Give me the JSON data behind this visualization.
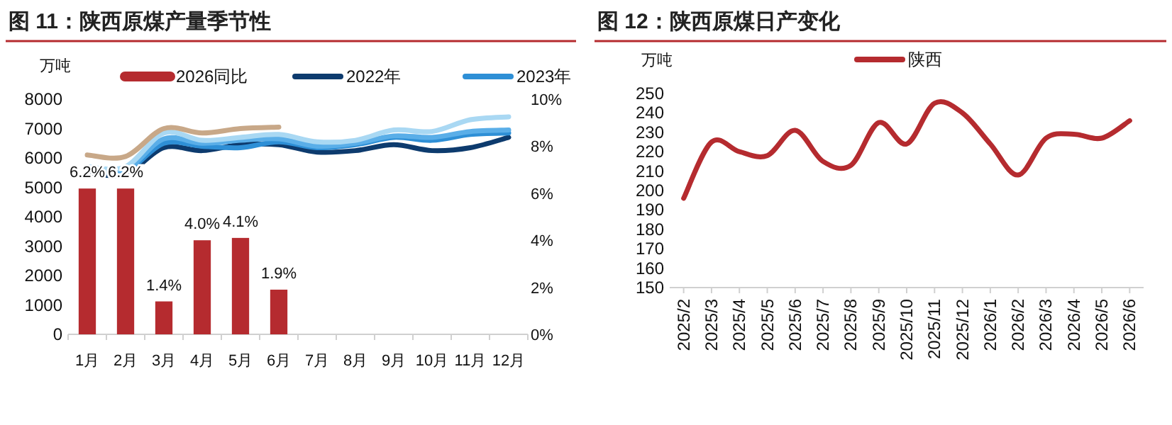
{
  "chart_data": [
    {
      "type": "line",
      "title": "图 11：陕西原煤产量季节性",
      "ylabel": "万吨",
      "categories": [
        "1月",
        "2月",
        "3月",
        "4月",
        "5月",
        "6月",
        "7月",
        "8月",
        "9月",
        "10月",
        "11月",
        "12月"
      ],
      "ylim": [
        0,
        8000
      ],
      "yticks": [
        0,
        1000,
        2000,
        3000,
        4000,
        5000,
        6000,
        7000,
        8000
      ],
      "y2lim": [
        0,
        10
      ],
      "y2ticks": [
        {
          "value": 0,
          "label": "0%"
        },
        {
          "value": 2,
          "label": "2%"
        },
        {
          "value": 4,
          "label": "4%"
        },
        {
          "value": 6,
          "label": "6%"
        },
        {
          "value": 8,
          "label": "8%"
        },
        {
          "value": 10,
          "label": "10%"
        }
      ],
      "legend": "top",
      "grid": false,
      "series": [
        {
          "name": "2026同比",
          "type": "bar",
          "axis": "y2",
          "color": "#b52b2f",
          "values": [
            6.2,
            6.2,
            1.4,
            4.0,
            4.1,
            1.9,
            null,
            null,
            null,
            null,
            null,
            null
          ],
          "value_labels": [
            "6.2%",
            "6.2%",
            "1.4%",
            "4.0%",
            "4.1%",
            "1.9%",
            null,
            null,
            null,
            null,
            null,
            null
          ]
        },
        {
          "name": "2022年",
          "type": "line",
          "color": "#0d3b6e",
          "values": [
            5500,
            5450,
            6350,
            6250,
            6450,
            6450,
            6200,
            6250,
            6450,
            6250,
            6350,
            6700
          ]
        },
        {
          "name": "2023年",
          "type": "line",
          "color": "#2e8fd6",
          "values": [
            5600,
            5550,
            6500,
            6400,
            6350,
            6550,
            6350,
            6450,
            6700,
            6600,
            6800,
            6850
          ]
        },
        {
          "type": "line",
          "color": "#5aaee8",
          "values": [
            5600,
            5600,
            6650,
            6500,
            6600,
            6650,
            6400,
            6500,
            6750,
            6700,
            6900,
            6950
          ]
        },
        {
          "type": "line",
          "color": "#a9d8f3",
          "values": [
            5700,
            5700,
            6850,
            6600,
            6700,
            6800,
            6550,
            6600,
            6950,
            6900,
            7300,
            7400
          ]
        },
        {
          "type": "line",
          "color": "#c8a888",
          "values": [
            6100,
            6050,
            7000,
            6850,
            7000,
            7050,
            null,
            null,
            null,
            null,
            null,
            null
          ]
        }
      ]
    },
    {
      "type": "line",
      "title": "图 12：陕西原煤日产变化",
      "ylabel": "万吨",
      "categories": [
        "2025/2",
        "2025/3",
        "2025/4",
        "2025/5",
        "2025/6",
        "2025/7",
        "2025/8",
        "2025/9",
        "2025/10",
        "2025/11",
        "2025/12",
        "2026/1",
        "2026/2",
        "2026/3",
        "2026/4",
        "2026/5",
        "2026/6"
      ],
      "ylim": [
        150,
        250
      ],
      "yticks": [
        150,
        160,
        170,
        180,
        190,
        200,
        210,
        220,
        230,
        240,
        250
      ],
      "legend": "top",
      "grid": false,
      "series": [
        {
          "name": "陕西",
          "color": "#b52b2f",
          "values": [
            196,
            225,
            220,
            218,
            231,
            215,
            213,
            235,
            224,
            245,
            240,
            224,
            208,
            227,
            229,
            227,
            236
          ]
        }
      ]
    }
  ]
}
